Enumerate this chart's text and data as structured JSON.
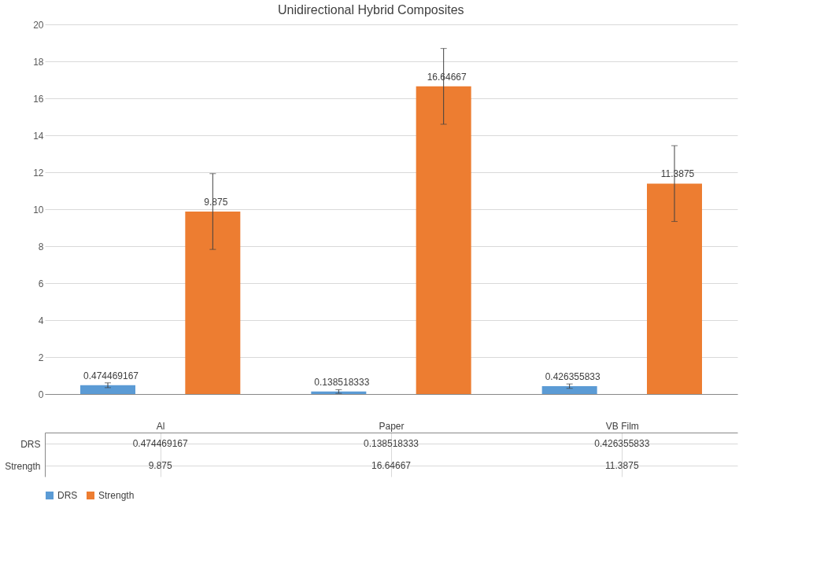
{
  "chart_data": {
    "type": "bar",
    "title": "Unidirectional Hybrid Composites",
    "categories": [
      "Al",
      "Paper",
      "VB Film"
    ],
    "series": [
      {
        "name": "DRS",
        "color": "#5b9bd5",
        "values": [
          0.474469167,
          0.138518333,
          0.426355833
        ],
        "errors": [
          0.13,
          0.1,
          0.12
        ],
        "value_labels": [
          "0.474469167",
          "0.138518333",
          "0.426355833"
        ]
      },
      {
        "name": "Strength",
        "color": "#ed7d31",
        "values": [
          9.875,
          16.64667,
          11.3875
        ],
        "errors": [
          2.05,
          2.05,
          2.05
        ],
        "value_labels": [
          "9.875",
          "16.64667",
          "11.3875"
        ]
      }
    ],
    "ylim": [
      0,
      20
    ],
    "yticks": [
      0,
      2,
      4,
      6,
      8,
      10,
      12,
      14,
      16,
      18,
      20
    ],
    "grid": "y",
    "legend": "bottom",
    "data_labels": true,
    "annotations": [
      "0.474469167",
      "0.138518333",
      "0.426355833",
      "9.875",
      "16.64667",
      "11.3875"
    ]
  }
}
